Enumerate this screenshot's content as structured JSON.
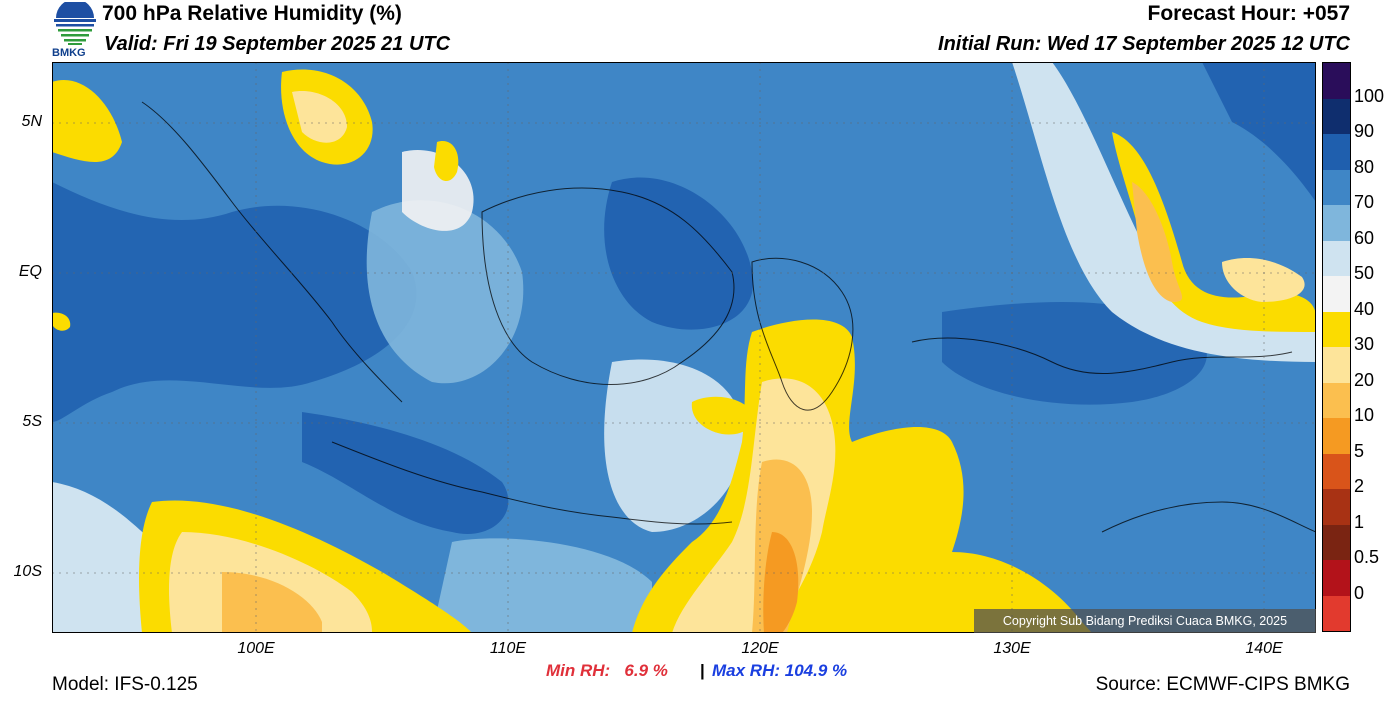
{
  "header": {
    "title": "700 hPa Relative Humidity (%)",
    "valid": "Valid: Fri 19 September 2025 21 UTC",
    "forecast_hour": "Forecast Hour: +057",
    "initial_run": "Initial Run: Wed 17 September 2025 12 UTC",
    "logo_text": "BMKG"
  },
  "map": {
    "lat_labels": [
      "5N",
      "EQ",
      "5S",
      "10S"
    ],
    "lon_labels": [
      "100E",
      "110E",
      "120E",
      "130E",
      "140E"
    ],
    "copyright": "Copyright Sub Bidang Prediksi Cuaca BMKG, 2025"
  },
  "colorbar": {
    "labels": [
      "100",
      "90",
      "80",
      "70",
      "60",
      "50",
      "40",
      "30",
      "20",
      "10",
      "5",
      "2",
      "1",
      "0.5",
      "0"
    ],
    "colors": [
      "#2a0d5a",
      "#0f2e6e",
      "#1f5fae",
      "#3f86c6",
      "#7fb6dc",
      "#cfe3f0",
      "#f3f3f3",
      "#fbdc00",
      "#fde49a",
      "#fbbf4f",
      "#f59a22",
      "#d9541a",
      "#a83214",
      "#7a2412",
      "#b3121a",
      "#e23a2e"
    ]
  },
  "stats": {
    "min_rh_label": "Min RH:",
    "min_rh_value": "6.9 %",
    "separator": "|",
    "max_rh_label": "Max RH:",
    "max_rh_value": "104.9 %"
  },
  "footer": {
    "model": "Model: IFS-0.125",
    "source": "Source: ECMWF-CIPS BMKG"
  }
}
